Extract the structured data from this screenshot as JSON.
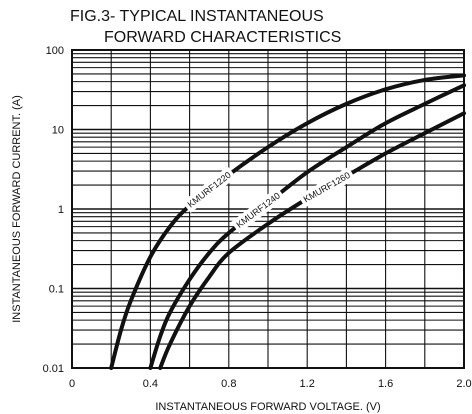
{
  "chart_data": {
    "type": "line",
    "title_line1": "FIG.3- TYPICAL INSTANTANEOUS",
    "title_line2": "FORWARD CHARACTERISTICS",
    "xlabel": "INSTANTANEOUS FORWARD VOLTAGE. (V)",
    "ylabel": "INSTANTANEOUS FORWARD CURRENT. (A)",
    "xlim": [
      0,
      2.0
    ],
    "ylim": [
      0.01,
      100
    ],
    "yscale": "log",
    "grid": true,
    "x_ticks": [
      "0",
      "0.4",
      "0.8",
      "1.2",
      "1.6",
      "2.0"
    ],
    "y_ticks": [
      "0.01",
      "0.1",
      "1",
      "10",
      "100"
    ],
    "series": [
      {
        "name": "KMURF1220",
        "x": [
          0.2,
          0.25,
          0.3,
          0.4,
          0.5,
          0.6,
          0.8,
          1.0,
          1.2,
          1.4,
          1.6,
          1.8,
          2.0
        ],
        "y": [
          0.01,
          0.03,
          0.07,
          0.25,
          0.6,
          1.1,
          2.7,
          6.0,
          12,
          21,
          32,
          42,
          48
        ]
      },
      {
        "name": "KMURF1240",
        "x": [
          0.4,
          0.45,
          0.5,
          0.6,
          0.7,
          0.8,
          1.0,
          1.2,
          1.4,
          1.6,
          1.8,
          2.0
        ],
        "y": [
          0.01,
          0.025,
          0.05,
          0.13,
          0.28,
          0.5,
          1.2,
          2.9,
          6.0,
          12,
          21,
          36
        ]
      },
      {
        "name": "KMURF1260",
        "x": [
          0.45,
          0.5,
          0.6,
          0.7,
          0.8,
          1.0,
          1.2,
          1.4,
          1.6,
          1.8,
          2.0
        ],
        "y": [
          0.01,
          0.02,
          0.06,
          0.14,
          0.28,
          0.65,
          1.35,
          2.6,
          5.0,
          9.0,
          16.0
        ]
      }
    ],
    "line_color": "#111111"
  }
}
